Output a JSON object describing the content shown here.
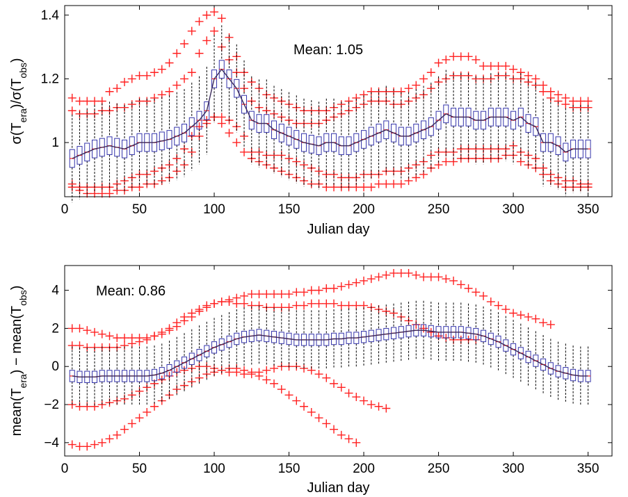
{
  "chart_data": [
    {
      "type": "box",
      "xlabel": "Julian day",
      "ylabel": {
        "base": "σ(T",
        "sub1": "era",
        "mid": ")/σ(T",
        "sub2": "obs",
        "end": ")"
      },
      "annotation": "Mean: 1.05",
      "xlim": [
        0,
        366
      ],
      "ylim": [
        0.83,
        1.43
      ],
      "xticks": [
        0,
        50,
        100,
        150,
        200,
        250,
        300,
        350
      ],
      "yticks": [
        1.0,
        1.2,
        1.4
      ],
      "ytick_labels": [
        "1",
        "1.2",
        "1.4"
      ],
      "box_x_start": 5,
      "box_x_step": 5,
      "mean_series": [
        0.95,
        0.96,
        0.97,
        0.98,
        0.985,
        0.99,
        0.985,
        0.98,
        0.99,
        1.0,
        1.0,
        1.0,
        1.005,
        1.01,
        1.02,
        1.03,
        1.05,
        1.07,
        1.1,
        1.2,
        1.23,
        1.2,
        1.17,
        1.12,
        1.07,
        1.06,
        1.06,
        1.04,
        1.03,
        1.02,
        1.01,
        1.0,
        0.995,
        0.99,
        1.0,
        1.0,
        0.99,
        0.99,
        1.0,
        1.01,
        1.02,
        1.03,
        1.04,
        1.03,
        1.02,
        1.02,
        1.03,
        1.04,
        1.05,
        1.07,
        1.09,
        1.08,
        1.08,
        1.08,
        1.07,
        1.07,
        1.08,
        1.08,
        1.08,
        1.07,
        1.08,
        1.06,
        1.05,
        1.0,
        1.0,
        0.99,
        0.97,
        0.98,
        0.98,
        0.98
      ],
      "box_half_height": 0.028,
      "whisker_low_offset": 0.11,
      "whisker_high_offset": 0.11,
      "outlier_bands": [
        [
          1.14,
          1.13,
          1.13,
          1.13,
          1.13,
          1.16,
          1.17,
          1.19,
          1.2,
          1.21,
          1.21,
          1.22,
          1.23,
          1.25,
          1.28,
          1.31,
          1.35,
          1.38,
          1.4,
          1.41,
          1.39,
          1.33,
          1.27,
          1.22,
          1.19,
          1.17,
          1.15,
          1.14,
          1.13,
          1.12,
          1.11,
          1.1,
          1.1,
          1.1,
          1.1,
          1.11,
          1.12,
          1.13,
          1.14,
          1.15,
          1.16,
          1.16,
          1.16,
          1.16,
          1.16,
          1.17,
          1.18,
          1.2,
          1.22,
          1.25,
          1.26,
          1.27,
          1.27,
          1.27,
          1.26,
          1.24,
          1.24,
          1.24,
          1.24,
          1.23,
          1.22,
          1.21,
          1.2,
          1.18,
          1.16,
          1.15,
          1.14,
          1.13,
          1.13,
          1.13
        ],
        [
          1.1,
          1.09,
          1.09,
          1.09,
          1.1,
          1.1,
          1.11,
          1.11,
          1.12,
          1.13,
          1.13,
          1.14,
          1.15,
          1.16,
          1.18,
          1.2,
          1.22,
          1.28,
          1.32,
          1.35,
          1.3,
          1.26,
          1.22,
          1.17,
          1.13,
          1.11,
          1.1,
          1.09,
          1.08,
          1.07,
          1.06,
          1.06,
          1.06,
          1.06,
          1.07,
          1.08,
          1.09,
          1.1,
          1.11,
          1.12,
          1.13,
          1.13,
          1.13,
          1.12,
          1.12,
          1.13,
          1.14,
          1.15,
          1.17,
          1.19,
          1.2,
          1.21,
          1.21,
          1.21,
          1.2,
          1.2,
          1.2,
          1.21,
          1.21,
          1.2,
          1.2,
          1.19,
          1.18,
          1.16,
          1.14,
          1.13,
          1.12,
          1.11,
          1.11,
          1.11
        ],
        [
          0.87,
          0.86,
          0.86,
          0.86,
          0.86,
          0.86,
          0.87,
          0.88,
          0.89,
          0.9,
          0.9,
          0.91,
          0.92,
          0.93,
          0.95,
          0.98,
          1.02,
          1.05,
          1.07,
          1.08,
          1.08,
          1.07,
          1.05,
          1.02,
          0.97,
          0.97,
          0.96,
          0.96,
          0.96,
          0.95,
          0.94,
          0.93,
          0.92,
          0.91,
          0.9,
          0.9,
          0.89,
          0.89,
          0.89,
          0.9,
          0.9,
          0.9,
          0.91,
          0.91,
          0.91,
          0.92,
          0.93,
          0.94,
          0.96,
          0.97,
          0.97,
          0.97,
          0.98,
          0.98,
          0.98,
          0.98,
          0.98,
          0.98,
          0.98,
          0.99,
          0.97,
          0.96,
          0.95,
          0.92,
          0.9,
          0.89,
          0.88,
          0.88,
          0.87,
          0.87
        ],
        [
          0.86,
          0.85,
          0.84,
          0.84,
          0.84,
          0.84,
          0.85,
          0.85,
          0.86,
          0.86,
          0.87,
          0.87,
          0.88,
          0.89,
          0.91,
          0.93,
          0.97,
          1.02,
          1.06,
          1.08,
          1.06,
          1.03,
          1.0,
          0.97,
          0.95,
          0.94,
          0.93,
          0.92,
          0.91,
          0.9,
          0.89,
          0.88,
          0.87,
          0.87,
          0.86,
          0.86,
          0.86,
          0.86,
          0.86,
          0.86,
          0.86,
          0.87,
          0.87,
          0.87,
          0.87,
          0.88,
          0.89,
          0.9,
          0.92,
          0.93,
          0.94,
          0.94,
          0.95,
          0.95,
          0.95,
          0.95,
          0.95,
          0.95,
          0.96,
          0.96,
          0.94,
          0.93,
          0.92,
          0.9,
          0.88,
          0.87,
          0.86,
          0.86,
          0.86,
          0.86
        ]
      ]
    },
    {
      "type": "box",
      "xlabel": "Julian day",
      "ylabel": {
        "base": "mean(T",
        "sub1": "era",
        "mid": ") − mean(T",
        "sub2": "obs",
        "end": ")"
      },
      "annotation": "Mean: 0.86",
      "xlim": [
        0,
        366
      ],
      "ylim": [
        -4.7,
        5.3
      ],
      "xticks": [
        0,
        50,
        100,
        150,
        200,
        250,
        300,
        350
      ],
      "yticks": [
        -4,
        -2,
        0,
        2,
        4
      ],
      "ytick_labels": [
        "−4",
        "−2",
        "0",
        "2",
        "4"
      ],
      "box_x_start": 5,
      "box_x_step": 5,
      "mean_series": [
        -0.5,
        -0.55,
        -0.55,
        -0.55,
        -0.5,
        -0.5,
        -0.5,
        -0.5,
        -0.5,
        -0.5,
        -0.5,
        -0.45,
        -0.35,
        -0.2,
        0.0,
        0.2,
        0.4,
        0.6,
        0.8,
        1.0,
        1.15,
        1.3,
        1.45,
        1.55,
        1.6,
        1.65,
        1.6,
        1.55,
        1.5,
        1.45,
        1.4,
        1.4,
        1.4,
        1.4,
        1.4,
        1.45,
        1.45,
        1.5,
        1.5,
        1.55,
        1.6,
        1.65,
        1.7,
        1.75,
        1.8,
        1.85,
        1.9,
        1.9,
        1.85,
        1.8,
        1.8,
        1.8,
        1.8,
        1.75,
        1.7,
        1.6,
        1.45,
        1.3,
        1.1,
        0.9,
        0.7,
        0.5,
        0.3,
        0.1,
        -0.1,
        -0.25,
        -0.35,
        -0.45,
        -0.5,
        -0.5
      ],
      "box_half_height": 0.3,
      "whisker_low_offset": 1.2,
      "whisker_high_offset": 1.25,
      "outlier_bands": [
        [
          2.0,
          2.0,
          1.9,
          1.8,
          1.7,
          1.6,
          1.5,
          1.5,
          1.5,
          1.5,
          1.5,
          1.6,
          1.7,
          1.9,
          2.1,
          2.4,
          2.6,
          2.9,
          3.1,
          3.3,
          3.4,
          3.5,
          3.6,
          3.7,
          3.8,
          3.8,
          3.8,
          3.8,
          3.8,
          3.8,
          3.9,
          3.9,
          4.0,
          4.0,
          4.1,
          4.1,
          4.2,
          4.3,
          4.4,
          4.5,
          4.6,
          4.7,
          4.8,
          4.9,
          4.9,
          4.9,
          4.8,
          4.7,
          4.7,
          4.7,
          4.6,
          4.5,
          4.3,
          4.1,
          3.9,
          3.7,
          3.4,
          3.2,
          3.0,
          2.8,
          2.7,
          2.6,
          2.5,
          2.3,
          2.2
        ],
        [
          1.1,
          1.1,
          1.0,
          1.0,
          1.0,
          1.0,
          1.0,
          1.1,
          1.2,
          1.3,
          1.4,
          1.6,
          1.8,
          2.0,
          2.3,
          2.6,
          2.8,
          3.0,
          3.2,
          3.3,
          3.4,
          3.4,
          3.3,
          3.3,
          3.2,
          3.2,
          3.1,
          3.1,
          3.1,
          3.1,
          3.2,
          3.2,
          3.3,
          3.3,
          3.3,
          3.3,
          3.2,
          3.2,
          3.2,
          3.2,
          3.1,
          3.0,
          2.9,
          2.8,
          2.6,
          2.4,
          2.2,
          2.0,
          1.8,
          1.6,
          1.5,
          1.4,
          1.4,
          1.4,
          1.4
        ],
        [
          -2.0,
          -2.1,
          -2.1,
          -2.1,
          -2.0,
          -1.9,
          -1.8,
          -1.7,
          -1.5,
          -1.3,
          -1.1,
          -0.9,
          -0.7,
          -0.5,
          -0.3,
          -0.2,
          -0.1,
          0.0,
          0.0,
          -0.1,
          -0.2,
          -0.3,
          -0.3,
          -0.4,
          -0.4,
          -0.3,
          -0.2,
          -0.1,
          0.0,
          0.0,
          0.0,
          -0.1,
          -0.2,
          -0.4,
          -0.6,
          -0.9,
          -1.1,
          -1.4,
          -1.6,
          -1.8,
          -2.0,
          -2.1,
          -2.2
        ],
        [
          -4.1,
          -4.2,
          -4.2,
          -4.1,
          -4.0,
          -3.8,
          -3.6,
          -3.3,
          -3.0,
          -2.7,
          -2.4,
          -2.1,
          -1.8,
          -1.5,
          -1.2,
          -1.0,
          -0.8,
          -0.6,
          -0.4,
          -0.3,
          -0.2,
          -0.1,
          -0.1,
          -0.2,
          -0.3,
          -0.5,
          -0.7,
          -0.9,
          -1.2,
          -1.5,
          -1.8,
          -2.1,
          -2.4,
          -2.7,
          -3.0,
          -3.3,
          -3.6,
          -3.8,
          -4.0
        ]
      ]
    }
  ]
}
